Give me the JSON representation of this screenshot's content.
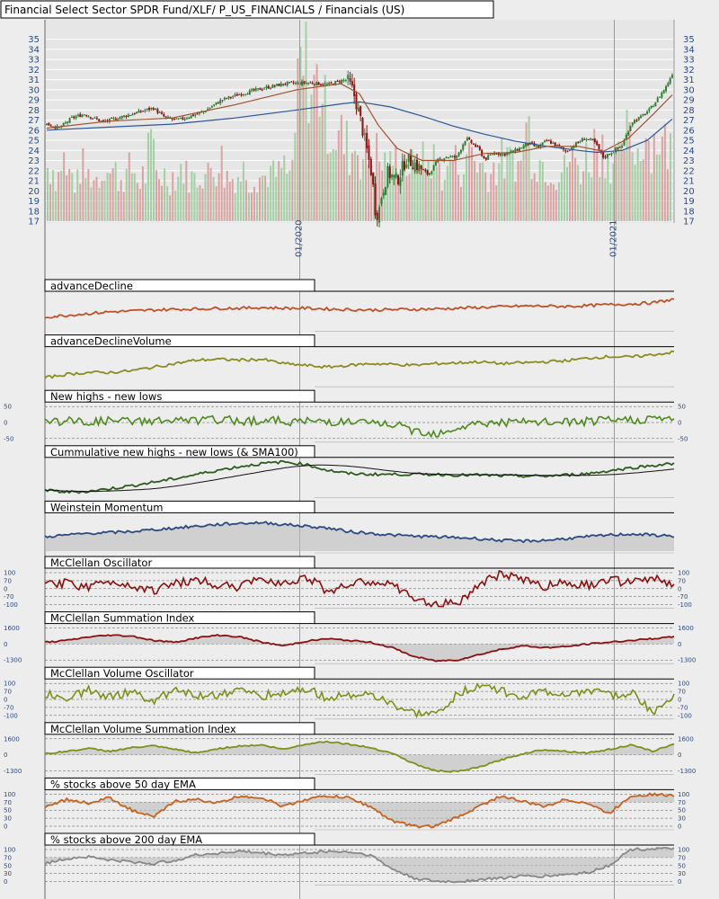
{
  "title": "Financial Select Sector SPDR Fund/XLF/ P_US_FINANCIALS / Financials (US)",
  "colors": {
    "background": "#ededed",
    "grid": "#ffffff",
    "price_up": "#2e7d32",
    "price_down": "#8b1010",
    "ema_short": "#a0522d",
    "ema_long": "#2b5797",
    "volume_up": "#9ccc9c",
    "volume_down": "#d99a9a",
    "axis_text": "#2b4a80"
  },
  "chart_data": [
    {
      "id": "price",
      "type": "candlestick",
      "title": "Financial Select Sector SPDR Fund/XLF/ P_US_FINANCIALS / Financials (US)",
      "y_ticks": [
        17,
        18,
        19,
        20,
        21,
        22,
        23,
        24,
        25,
        26,
        27,
        28,
        29,
        30,
        31,
        32,
        33,
        34,
        35
      ],
      "x_tick_labels": [
        "01/2020",
        "01/2021"
      ],
      "ylim": [
        17,
        35.5
      ],
      "close_path": [
        [
          0,
          26.6
        ],
        [
          0.02,
          26.2
        ],
        [
          0.04,
          27.2
        ],
        [
          0.06,
          27.6
        ],
        [
          0.09,
          26.8
        ],
        [
          0.13,
          27.5
        ],
        [
          0.17,
          28.2
        ],
        [
          0.19,
          27.2
        ],
        [
          0.21,
          27.0
        ],
        [
          0.25,
          27.8
        ],
        [
          0.28,
          29.0
        ],
        [
          0.31,
          29.6
        ],
        [
          0.35,
          30.2
        ],
        [
          0.38,
          30.6
        ],
        [
          0.42,
          30.7
        ],
        [
          0.45,
          30.5
        ],
        [
          0.47,
          30.9
        ],
        [
          0.48,
          31.0
        ],
        [
          0.49,
          29.8
        ],
        [
          0.5,
          27.5
        ],
        [
          0.51,
          24.5
        ],
        [
          0.52,
          21.5
        ],
        [
          0.525,
          18.2
        ],
        [
          0.53,
          17.6
        ],
        [
          0.535,
          19.5
        ],
        [
          0.545,
          21.8
        ],
        [
          0.56,
          21.0
        ],
        [
          0.575,
          23.2
        ],
        [
          0.59,
          22.6
        ],
        [
          0.61,
          21.6
        ],
        [
          0.625,
          23.0
        ],
        [
          0.64,
          23.4
        ],
        [
          0.655,
          23.3
        ],
        [
          0.67,
          25.2
        ],
        [
          0.69,
          24.2
        ],
        [
          0.7,
          23.1
        ],
        [
          0.715,
          23.8
        ],
        [
          0.73,
          23.6
        ],
        [
          0.75,
          24.0
        ],
        [
          0.77,
          24.7
        ],
        [
          0.785,
          24.3
        ],
        [
          0.8,
          25.0
        ],
        [
          0.815,
          24.5
        ],
        [
          0.83,
          23.9
        ],
        [
          0.845,
          24.6
        ],
        [
          0.86,
          25.2
        ],
        [
          0.875,
          24.9
        ],
        [
          0.89,
          23.3
        ],
        [
          0.905,
          23.9
        ],
        [
          0.92,
          24.5
        ],
        [
          0.935,
          26.8
        ],
        [
          0.95,
          27.3
        ],
        [
          0.965,
          28.1
        ],
        [
          0.98,
          29.4
        ],
        [
          0.99,
          30.3
        ],
        [
          1.0,
          31.6
        ],
        [
          1.0,
          0
        ]
      ],
      "ema_short_path": [
        [
          0,
          26.2
        ],
        [
          0.1,
          26.9
        ],
        [
          0.2,
          27.2
        ],
        [
          0.3,
          28.5
        ],
        [
          0.4,
          30.0
        ],
        [
          0.47,
          30.6
        ],
        [
          0.5,
          29.6
        ],
        [
          0.53,
          26.5
        ],
        [
          0.56,
          24.2
        ],
        [
          0.6,
          23.0
        ],
        [
          0.65,
          23.0
        ],
        [
          0.7,
          23.7
        ],
        [
          0.75,
          23.8
        ],
        [
          0.8,
          24.4
        ],
        [
          0.85,
          24.4
        ],
        [
          0.89,
          23.9
        ],
        [
          0.93,
          25.2
        ],
        [
          0.97,
          27.6
        ],
        [
          1.0,
          29.5
        ]
      ],
      "ema_long_path": [
        [
          0,
          26.0
        ],
        [
          0.1,
          26.3
        ],
        [
          0.2,
          26.6
        ],
        [
          0.3,
          27.2
        ],
        [
          0.4,
          28.0
        ],
        [
          0.47,
          28.6
        ],
        [
          0.5,
          28.8
        ],
        [
          0.55,
          28.3
        ],
        [
          0.6,
          27.4
        ],
        [
          0.65,
          26.4
        ],
        [
          0.7,
          25.6
        ],
        [
          0.75,
          24.9
        ],
        [
          0.8,
          24.4
        ],
        [
          0.85,
          24.0
        ],
        [
          0.88,
          23.8
        ],
        [
          0.92,
          24.0
        ],
        [
          0.96,
          25.0
        ],
        [
          1.0,
          27.1
        ]
      ],
      "volume_relative": [
        0.35,
        0.3,
        0.4,
        0.3,
        0.25,
        0.35,
        0.3,
        0.28,
        0.3,
        0.4,
        0.32,
        0.28,
        0.3,
        0.33,
        0.26,
        0.3,
        0.45,
        0.32,
        0.3,
        0.28,
        0.3,
        0.35,
        0.3,
        0.28,
        0.32,
        0.3,
        0.35,
        0.4,
        0.3,
        0.28,
        0.3,
        0.33,
        0.28,
        0.3,
        0.29,
        0.32,
        0.3,
        0.35,
        0.3,
        0.42,
        0.95,
        1.0,
        0.85,
        0.9,
        0.7,
        0.6,
        0.55,
        0.5,
        0.45,
        0.5,
        0.42,
        0.4,
        0.45,
        0.38,
        0.35,
        0.4,
        0.38,
        0.36,
        0.35,
        0.45,
        0.38,
        0.4,
        0.35,
        0.3,
        0.42,
        0.38,
        0.35,
        0.5,
        0.4,
        0.36,
        0.32,
        0.35,
        0.4,
        0.38,
        0.42,
        0.36,
        0.6,
        0.45,
        0.4,
        0.38,
        0.35,
        0.3,
        0.33,
        0.4,
        0.38,
        0.35,
        0.42,
        0.5,
        0.48,
        0.45,
        0.4,
        0.38,
        0.55,
        0.5,
        0.45,
        0.6,
        0.52,
        0.55,
        0.5,
        0.48
      ]
    },
    {
      "id": "advance-decline",
      "type": "line",
      "title": "advanceDecline",
      "color": "#c0502a",
      "values": [
        0.35,
        0.4,
        0.45,
        0.5,
        0.52,
        0.55,
        0.57,
        0.58,
        0.6,
        0.6,
        0.62,
        0.6,
        0.6,
        0.58,
        0.56,
        0.55,
        0.56,
        0.57,
        0.58,
        0.6,
        0.62,
        0.64,
        0.66,
        0.66,
        0.65,
        0.67,
        0.7,
        0.72,
        0.75,
        0.85
      ]
    },
    {
      "id": "advance-decline-volume",
      "type": "line",
      "title": "advanceDeclineVolume",
      "color": "#8b8b1f",
      "values": [
        0.2,
        0.3,
        0.35,
        0.35,
        0.4,
        0.5,
        0.6,
        0.7,
        0.72,
        0.7,
        0.72,
        0.6,
        0.55,
        0.5,
        0.55,
        0.6,
        0.58,
        0.55,
        0.6,
        0.62,
        0.65,
        0.6,
        0.62,
        0.65,
        0.68,
        0.75,
        0.8,
        0.78,
        0.85,
        0.92
      ]
    },
    {
      "id": "new-highs-lows",
      "type": "line",
      "title": "New highs - new lows",
      "color": "#4e8a1e",
      "y_ticks_left": [
        "50",
        "0",
        "-50"
      ],
      "y_ticks_right": [
        "50",
        "0",
        "-50"
      ],
      "values": [
        0.05,
        0.08,
        0.02,
        0.1,
        0.05,
        0.12,
        0.08,
        0.1,
        0.15,
        0.1,
        0.12,
        0.08,
        0.05,
        0.08,
        0.02,
        -0.05,
        -0.1,
        -0.45,
        -0.6,
        -0.3,
        -0.05,
        0,
        0,
        0,
        0.02,
        0.05,
        0.1,
        0.15,
        0.2,
        0.25
      ]
    },
    {
      "id": "cumulative-new-highs-lows",
      "type": "line",
      "title": "Cummulative new highs - new lows (& SMA100)",
      "color": "#2e5c1e",
      "values": [
        0.15,
        0.1,
        0.12,
        0.2,
        0.28,
        0.38,
        0.48,
        0.6,
        0.72,
        0.82,
        0.9,
        0.95,
        0.88,
        0.72,
        0.62,
        0.6,
        0.6,
        0.6,
        0.6,
        0.58,
        0.58,
        0.56,
        0.55,
        0.55,
        0.58,
        0.62,
        0.7,
        0.78,
        0.85,
        0.9
      ]
    },
    {
      "id": "weinstein-momentum",
      "type": "area",
      "title": "Weinstein Momentum",
      "color": "#2b4a80",
      "values": [
        0.4,
        0.45,
        0.5,
        0.52,
        0.55,
        0.6,
        0.65,
        0.7,
        0.75,
        0.78,
        0.8,
        0.75,
        0.7,
        0.65,
        0.55,
        0.5,
        0.45,
        0.42,
        0.4,
        0.38,
        0.35,
        0.3,
        0.28,
        0.3,
        0.35,
        0.4,
        0.45,
        0.48,
        0.45,
        0.42
      ]
    },
    {
      "id": "mcclellan-oscillator",
      "type": "line",
      "title": "McClellan Oscillator",
      "color": "#8b1010",
      "y_ticks_left": [
        "100",
        "70",
        "0",
        "-70",
        "-100"
      ],
      "y_ticks_right": [
        "100",
        "70",
        "0",
        "-70",
        "-100"
      ],
      "values": [
        0.2,
        0.3,
        0.1,
        0.4,
        0.2,
        -0.1,
        0.3,
        0.5,
        0.2,
        0.1,
        0.6,
        0.3,
        0.7,
        -0.1,
        0.2,
        0.4,
        0.2,
        -0.6,
        -0.9,
        -0.8,
        0.2,
        0.8,
        0.6,
        0.1,
        0.4,
        0.2,
        0.5,
        0.3,
        0.6,
        0.2
      ]
    },
    {
      "id": "mcclellan-summation",
      "type": "area",
      "title": "McClellan Summation Index",
      "color": "#8b1010",
      "y_ticks_left": [
        "1600",
        "0",
        "-1300"
      ],
      "y_ticks_right": [
        "1600",
        "0",
        "-1300"
      ],
      "values": [
        0.1,
        0.2,
        0.4,
        0.5,
        0.45,
        0.2,
        0.1,
        0.35,
        0.5,
        0.4,
        0.1,
        -0.1,
        0.15,
        0.3,
        0.2,
        0.1,
        -0.2,
        -0.7,
        -0.95,
        -0.9,
        -0.6,
        -0.3,
        -0.1,
        -0.2,
        -0.15,
        0,
        0.1,
        0.2,
        0.3,
        0.4
      ]
    },
    {
      "id": "mcclellan-volume-oscillator",
      "type": "line",
      "title": "McClellan Volume Oscillator",
      "color": "#7f8f1a",
      "y_ticks_left": [
        "100",
        "70",
        "0",
        "-70",
        "-100"
      ],
      "y_ticks_right": [
        "100",
        "70",
        "0",
        "-70",
        "-100"
      ],
      "values": [
        0.3,
        0.1,
        0.5,
        0.2,
        0.4,
        -0.1,
        0.6,
        0.2,
        0.3,
        0.5,
        0.2,
        0.4,
        0.6,
        0.1,
        0.3,
        0.2,
        -0.3,
        -0.8,
        -0.9,
        0.3,
        0.8,
        0.5,
        0.2,
        0.4,
        0.3,
        0.5,
        0.2,
        0.4,
        -0.7,
        0.3
      ]
    },
    {
      "id": "mcclellan-volume-summation",
      "type": "area",
      "title": "McClellan Volume Summation Index",
      "color": "#7f8f1a",
      "y_ticks_left": [
        "1600",
        "0",
        "-1300"
      ],
      "y_ticks_right": [
        "1600",
        "0",
        "-1300"
      ],
      "values": [
        0.05,
        0.2,
        0.35,
        0.2,
        0.4,
        0.5,
        0.3,
        0.1,
        0.35,
        0.5,
        0.55,
        0.3,
        0.6,
        0.75,
        0.6,
        0.4,
        0.1,
        -0.5,
        -0.9,
        -0.95,
        -0.7,
        -0.3,
        0.05,
        0.3,
        0.2,
        0.1,
        0.3,
        0.55,
        0.2,
        0.6
      ]
    },
    {
      "id": "pct-above-50ema",
      "type": "area",
      "title": "% stocks above 50 day EMA",
      "color": "#c8621e",
      "y_ticks_left": [
        "100",
        "70",
        "50",
        "30",
        "0"
      ],
      "y_ticks_right": [
        "100",
        "70",
        "50",
        "30",
        "0"
      ],
      "values": [
        0.6,
        0.8,
        0.7,
        0.85,
        0.5,
        0.3,
        0.75,
        0.8,
        0.7,
        0.9,
        0.85,
        0.6,
        0.8,
        0.9,
        0.85,
        0.6,
        0.2,
        0.05,
        0.05,
        0.3,
        0.6,
        0.9,
        0.75,
        0.6,
        0.8,
        0.7,
        0.4,
        0.9,
        0.95,
        0.9
      ]
    },
    {
      "id": "pct-above-200ema",
      "type": "area",
      "title": "% stocks above 200 day EMA",
      "color": "#888888",
      "y_ticks_left": [
        "100",
        "70",
        "50",
        "30",
        "0"
      ],
      "y_ticks_right": [
        "100",
        "70",
        "50",
        "30",
        "0"
      ],
      "values": [
        0.55,
        0.7,
        0.75,
        0.65,
        0.6,
        0.55,
        0.65,
        0.8,
        0.85,
        0.9,
        0.85,
        0.8,
        0.85,
        0.9,
        0.88,
        0.8,
        0.4,
        0.15,
        0.05,
        0.05,
        0.1,
        0.15,
        0.2,
        0.2,
        0.25,
        0.3,
        0.5,
        0.95,
        0.97,
        0.98
      ]
    }
  ]
}
